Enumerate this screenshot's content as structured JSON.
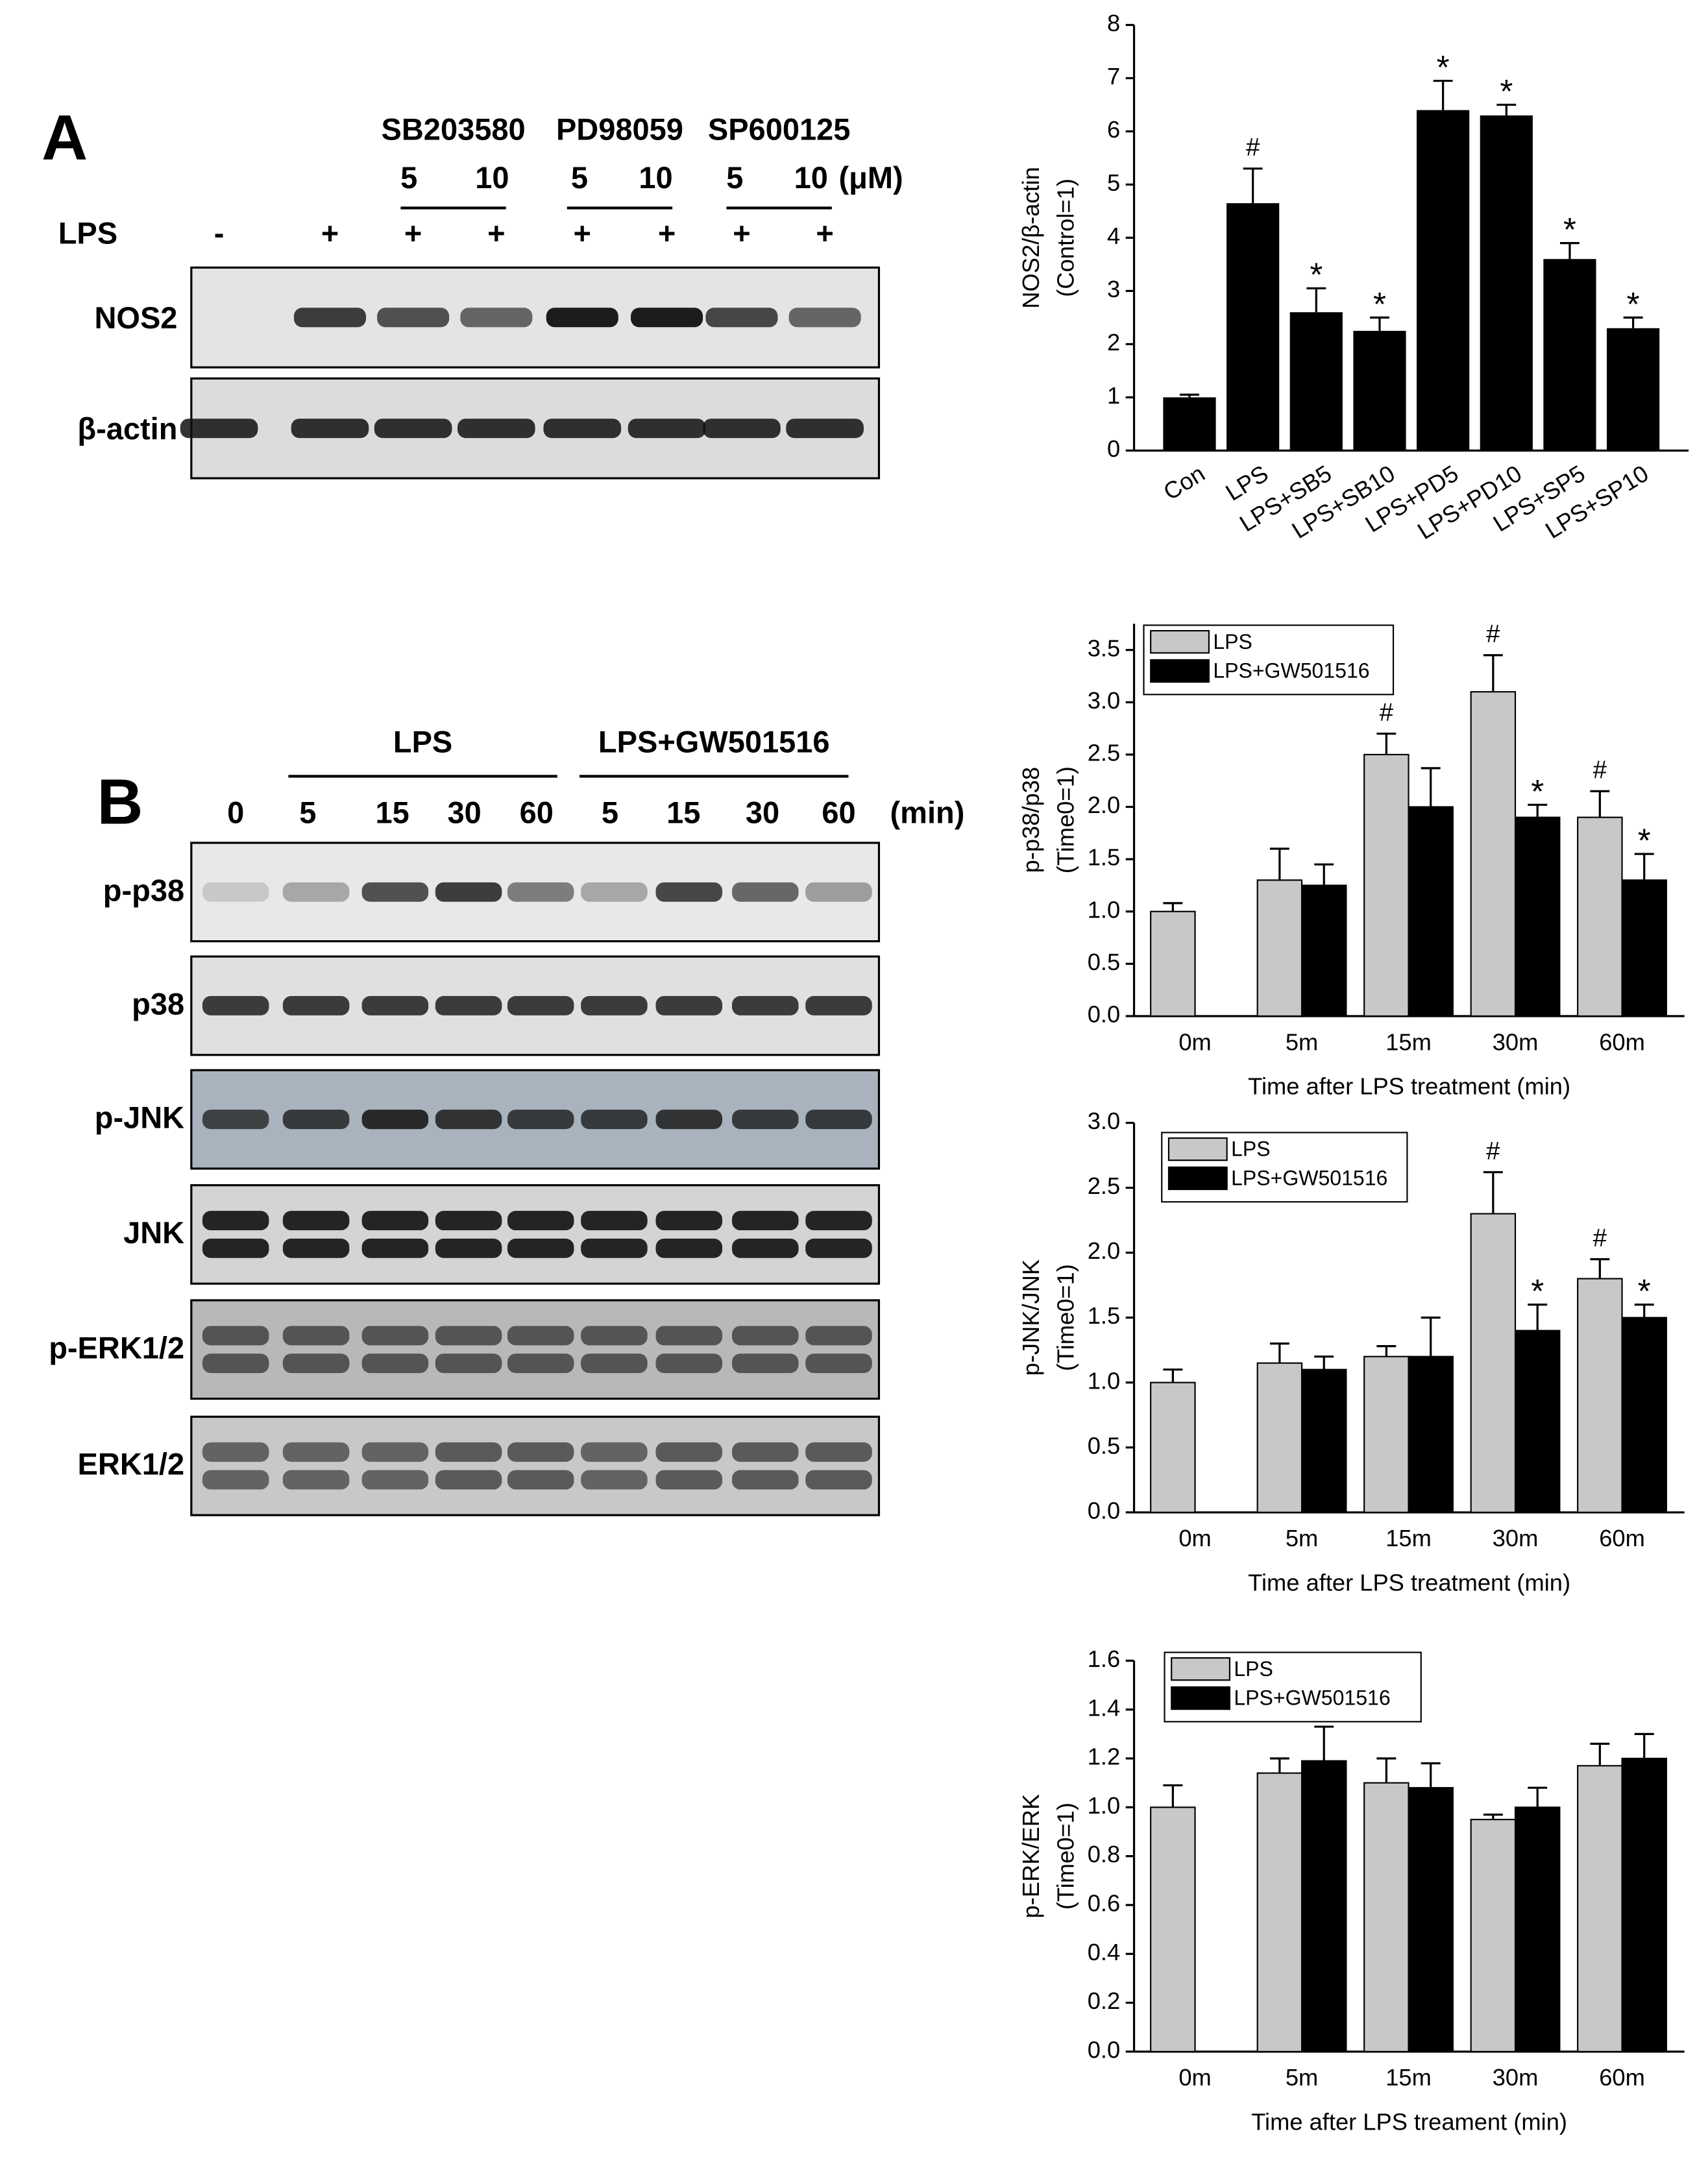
{
  "panel_a": {
    "label": "A",
    "treatments": [
      "SB203580",
      "PD98059",
      "SP600125"
    ],
    "doses": [
      "5",
      "10",
      "5",
      "10",
      "5",
      "10"
    ],
    "dose_unit": "(μM)",
    "lps_label": "LPS",
    "lps_signs": [
      "-",
      "+",
      "+",
      "+",
      "+",
      "+",
      "+",
      "+"
    ],
    "blots": [
      "NOS2",
      "β-actin"
    ]
  },
  "panel_b": {
    "label": "B",
    "groups": [
      "LPS",
      "LPS+GW501516"
    ],
    "times": [
      "0",
      "5",
      "15",
      "30",
      "60",
      "5",
      "15",
      "30",
      "60"
    ],
    "time_unit": "(min)",
    "blots": [
      "p-p38",
      "p38",
      "p-JNK",
      "JNK",
      "p-ERK1/2",
      "ERK1/2"
    ]
  },
  "chart_data": [
    {
      "type": "bar",
      "categories": [
        "Con",
        "LPS",
        "LPS+SB5",
        "LPS+SB10",
        "LPS+PD5",
        "LPS+PD10",
        "LPS+SP5",
        "LPS+SP10"
      ],
      "values": [
        1.0,
        4.65,
        2.6,
        2.25,
        6.4,
        6.3,
        3.6,
        2.3
      ],
      "errors": [
        0.05,
        0.65,
        0.45,
        0.25,
        0.55,
        0.2,
        0.3,
        0.2
      ],
      "annotations": [
        null,
        "#",
        "*",
        "*",
        "*",
        "*",
        "*",
        "*"
      ],
      "color": "#000000",
      "ylabel": [
        "NOS2/β-actin",
        "(Control=1)"
      ],
      "ylim": [
        0,
        8
      ],
      "yticks": [
        0,
        1,
        2,
        3,
        4,
        5,
        6,
        7,
        8
      ]
    },
    {
      "type": "grouped_bar",
      "categories": [
        "0m",
        "5m",
        "15m",
        "30m",
        "60m"
      ],
      "series": [
        {
          "name": "LPS",
          "color": "#c8c8c8",
          "values": [
            1.0,
            1.3,
            2.5,
            3.1,
            1.9
          ],
          "errors": [
            0.08,
            0.3,
            0.2,
            0.35,
            0.25
          ],
          "annotations": [
            null,
            null,
            "#",
            "#",
            "#"
          ]
        },
        {
          "name": "LPS+GW501516",
          "color": "#000000",
          "values": [
            null,
            1.25,
            2.0,
            1.9,
            1.3
          ],
          "errors": [
            null,
            0.2,
            0.37,
            0.12,
            0.25
          ],
          "annotations": [
            null,
            null,
            null,
            "*",
            "*"
          ]
        }
      ],
      "xlabel": "Time after LPS treatment (min)",
      "ylabel": [
        "p-p38/p38",
        "(Time0=1)"
      ],
      "ylim": [
        0,
        3.75
      ],
      "yticks": [
        {
          "value": 0,
          "label": "0.0"
        },
        0.5,
        {
          "value": 1,
          "label": "1.0"
        },
        1.5,
        {
          "value": 2,
          "label": "2.0"
        },
        2.5,
        {
          "value": 3,
          "label": "3.0"
        },
        3.5
      ],
      "legend": "upper left"
    },
    {
      "type": "grouped_bar",
      "categories": [
        "0m",
        "5m",
        "15m",
        "30m",
        "60m"
      ],
      "series": [
        {
          "name": "LPS",
          "color": "#c8c8c8",
          "values": [
            1.0,
            1.15,
            1.2,
            2.3,
            1.8
          ],
          "errors": [
            0.1,
            0.15,
            0.08,
            0.32,
            0.15
          ],
          "annotations": [
            null,
            null,
            null,
            "#",
            "#"
          ]
        },
        {
          "name": "LPS+GW501516",
          "color": "#000000",
          "values": [
            null,
            1.1,
            1.2,
            1.4,
            1.5
          ],
          "errors": [
            null,
            0.1,
            0.3,
            0.2,
            0.1
          ],
          "annotations": [
            null,
            null,
            null,
            "*",
            "*"
          ]
        }
      ],
      "xlabel": "Time after LPS treatment (min)",
      "ylabel": [
        "p-JNK/JNK",
        "(Time0=1)"
      ],
      "ylim": [
        0,
        3
      ],
      "yticks": [
        {
          "value": 0,
          "label": "0.0"
        },
        0.5,
        {
          "value": 1,
          "label": "1.0"
        },
        1.5,
        {
          "value": 2,
          "label": "2.0"
        },
        2.5,
        {
          "value": 3,
          "label": "3.0"
        }
      ],
      "legend": "upper left"
    },
    {
      "type": "grouped_bar",
      "categories": [
        "0m",
        "5m",
        "15m",
        "30m",
        "60m"
      ],
      "series": [
        {
          "name": "LPS",
          "color": "#c8c8c8",
          "values": [
            1.0,
            1.14,
            1.1,
            0.95,
            1.17
          ],
          "errors": [
            0.09,
            0.06,
            0.1,
            0.02,
            0.09
          ]
        },
        {
          "name": "LPS+GW501516",
          "color": "#000000",
          "values": [
            null,
            1.19,
            1.08,
            1.0,
            1.2
          ],
          "errors": [
            null,
            0.14,
            0.1,
            0.08,
            0.1
          ]
        }
      ],
      "xlabel": "Time after LPS treament (min)",
      "ylabel": [
        "p-ERK/ERK",
        "(Time0=1)"
      ],
      "ylim": [
        0,
        1.6
      ],
      "yticks": [
        {
          "value": 0,
          "label": "0.0"
        },
        0.2,
        0.4,
        0.6,
        0.8,
        {
          "value": 1,
          "label": "1.0"
        },
        1.2,
        1.4,
        1.6
      ],
      "legend": "upper left"
    }
  ]
}
